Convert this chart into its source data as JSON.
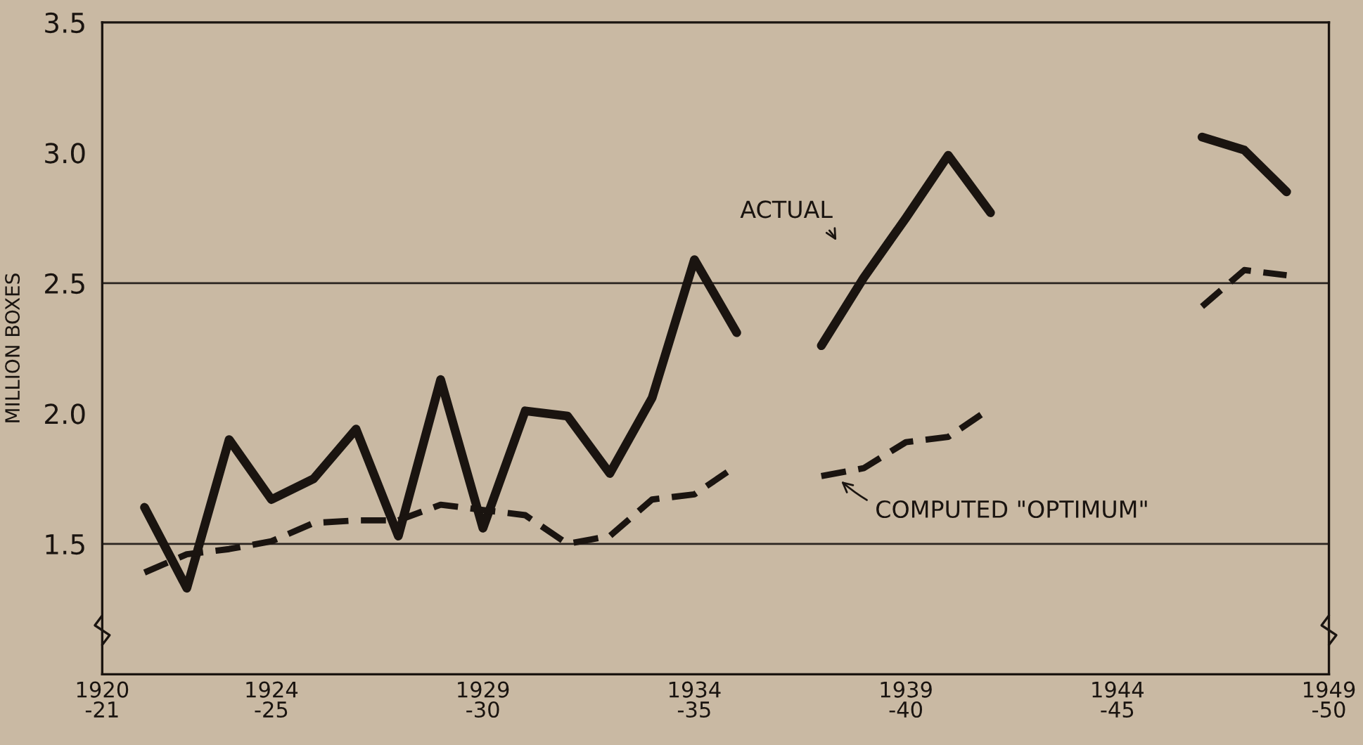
{
  "chart_data": {
    "type": "line",
    "ylabel": "MILLION BOXES",
    "categories": [
      "1920\n-21",
      null,
      null,
      null,
      "1924\n-25",
      null,
      null,
      null,
      null,
      "1929\n-30",
      null,
      null,
      null,
      null,
      "1934\n-35",
      null,
      null,
      null,
      null,
      "1939\n-40",
      null,
      null,
      null,
      null,
      "1944\n-45",
      null,
      null,
      null,
      null,
      "1949\n-50"
    ],
    "series": [
      {
        "color": "#1a1410",
        "line_style": "solid",
        "values": [
          null,
          1.64,
          1.33,
          1.9,
          1.67,
          1.75,
          1.94,
          1.53,
          2.13,
          1.56,
          2.01,
          1.99,
          1.77,
          2.06,
          2.59,
          2.31,
          null,
          2.26,
          2.52,
          2.75,
          2.99,
          2.77,
          null,
          null,
          null,
          null,
          3.06,
          3.01,
          2.85,
          null
        ]
      },
      {
        "color": "#1a1410",
        "line_style": "dashed",
        "values": [
          null,
          1.39,
          1.46,
          1.48,
          1.51,
          1.58,
          1.59,
          1.59,
          1.65,
          1.63,
          1.61,
          1.5,
          1.53,
          1.67,
          1.69,
          1.8,
          null,
          1.76,
          1.79,
          1.89,
          1.91,
          2.02,
          null,
          null,
          null,
          null,
          2.41,
          2.55,
          2.53,
          null
        ]
      }
    ],
    "ylim": [
      1.0,
      3.5
    ],
    "yticks": [
      1.5,
      {
        "value": 2.0,
        "label": "2.0"
      },
      2.5,
      {
        "value": 3.0,
        "label": "3.0"
      },
      3.5
    ],
    "ref_lines": [
      {
        "axis": "y",
        "value": 1.5,
        "color": "#2a2420"
      },
      {
        "axis": "y",
        "value": 2.5,
        "color": "#2a2420"
      }
    ],
    "grid": false,
    "marker": "none",
    "annotations": [
      "ACTUAL",
      "COMPUTED \"OPTIMUM\""
    ]
  }
}
